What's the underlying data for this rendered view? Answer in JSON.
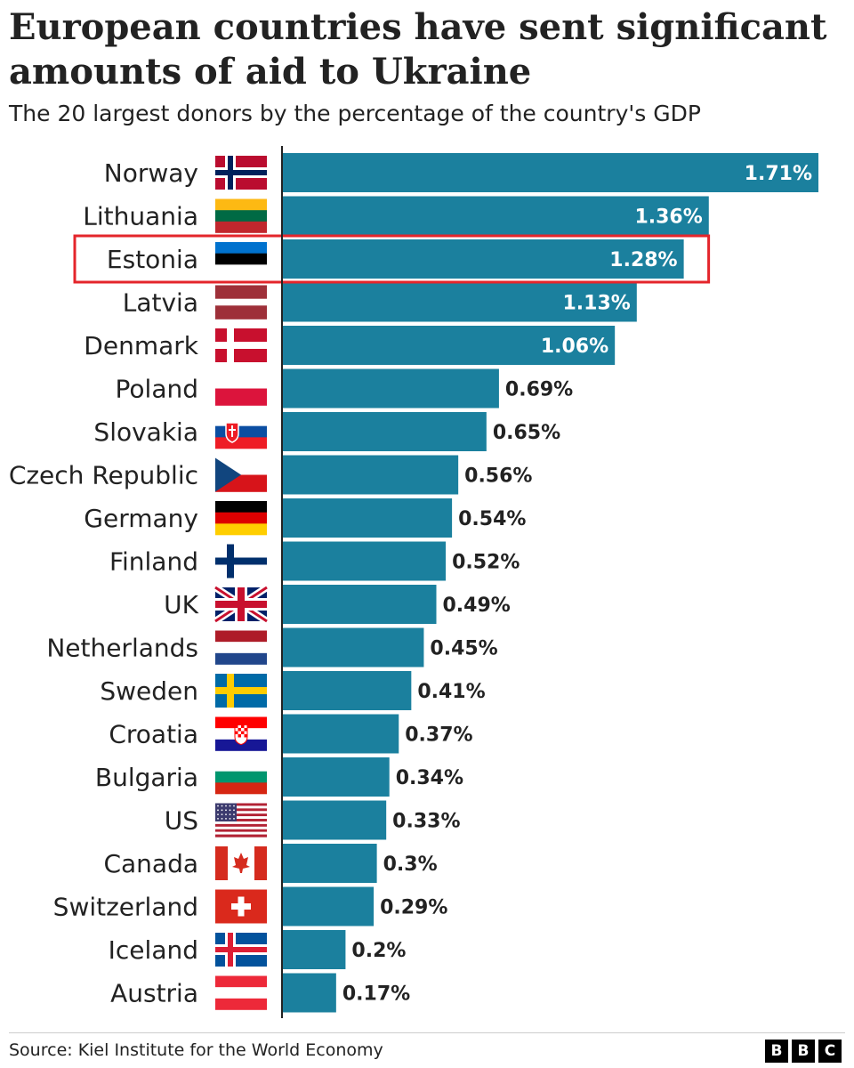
{
  "header": {
    "title": "European countries have sent significant amounts of aid to Ukraine",
    "subtitle": "The 20 largest donors by the percentage of the country's GDP"
  },
  "footer": {
    "source": "Source: Kiel Institute for the World Economy",
    "logo_letters": [
      "B",
      "B",
      "C"
    ]
  },
  "colors": {
    "bar": "#1b809e",
    "highlight_box": "#e4252b",
    "label_inside": "#ffffff",
    "label_outside": "#222222"
  },
  "chart_data": {
    "type": "bar",
    "orientation": "horizontal",
    "categories": [
      "Norway",
      "Lithuania",
      "Estonia",
      "Latvia",
      "Denmark",
      "Poland",
      "Slovakia",
      "Czech Republic",
      "Germany",
      "Finland",
      "UK",
      "Netherlands",
      "Sweden",
      "Croatia",
      "Bulgaria",
      "US",
      "Canada",
      "Switzerland",
      "Iceland",
      "Austria"
    ],
    "values": [
      1.71,
      1.36,
      1.28,
      1.13,
      1.06,
      0.69,
      0.65,
      0.56,
      0.54,
      0.52,
      0.49,
      0.45,
      0.41,
      0.37,
      0.34,
      0.33,
      0.3,
      0.29,
      0.2,
      0.17
    ],
    "value_labels": [
      "1.71%",
      "1.36%",
      "1.28%",
      "1.13%",
      "1.06%",
      "0.69%",
      "0.65%",
      "0.56%",
      "0.54%",
      "0.52%",
      "0.49%",
      "0.45%",
      "0.41%",
      "0.37%",
      "0.34%",
      "0.33%",
      "0.3%",
      "0.29%",
      "0.2%",
      "0.17%"
    ],
    "flags": [
      "norway-flag-icon",
      "lithuania-flag-icon",
      "estonia-flag-icon",
      "latvia-flag-icon",
      "denmark-flag-icon",
      "poland-flag-icon",
      "slovakia-flag-icon",
      "czech-republic-flag-icon",
      "germany-flag-icon",
      "finland-flag-icon",
      "uk-flag-icon",
      "netherlands-flag-icon",
      "sweden-flag-icon",
      "croatia-flag-icon",
      "bulgaria-flag-icon",
      "us-flag-icon",
      "canada-flag-icon",
      "switzerland-flag-icon",
      "iceland-flag-icon",
      "austria-flag-icon"
    ],
    "highlighted": "Estonia",
    "xlim": [
      0,
      1.71
    ],
    "grid": false,
    "legend": "none"
  }
}
